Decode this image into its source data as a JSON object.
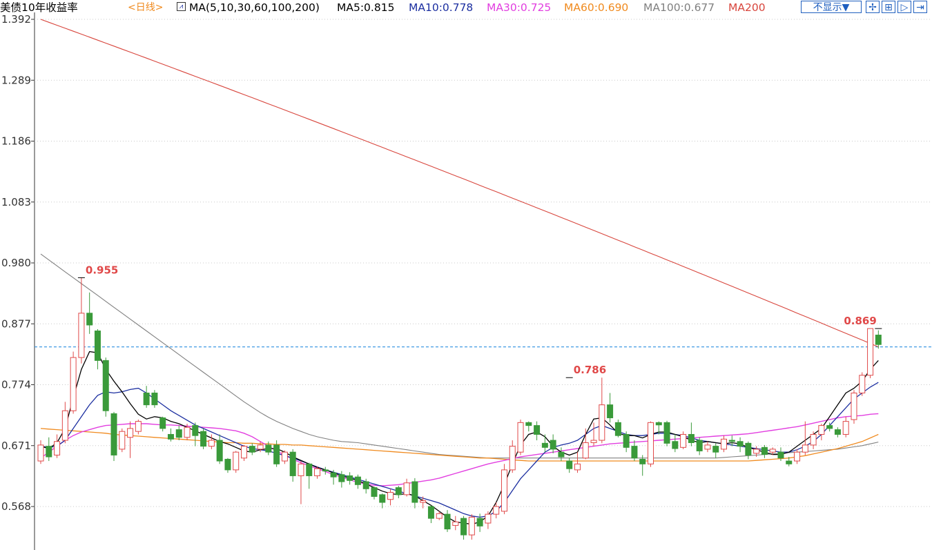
{
  "header": {
    "title": "美债10年收益率",
    "period": "<日线>",
    "ma_group": "MA(5,10,30,60,100,200)",
    "ma5": "MA5:0.815",
    "ma10": "MA10:0.778",
    "ma30": "MA30:0.725",
    "ma60": "MA60:0.690",
    "ma100": "MA100:0.677",
    "ma200": "MA200",
    "hide_button": "不显示▼"
  },
  "colors": {
    "up": "#e04848",
    "down": "#3a9a3a",
    "ma5": "#000000",
    "ma10": "#1c2fa0",
    "ma30": "#e23ee0",
    "ma60": "#f08a1e",
    "ma100": "#808080",
    "ma200": "#d8453c",
    "period": "#f08a1e",
    "axis": "#333333",
    "grid": "#c8c8c8",
    "ref_line": "#2a8fe0"
  },
  "toolbar_icons": [
    "crosshair-icon",
    "zoom-in-icon",
    "play-icon",
    "export-icon"
  ],
  "chart_data": {
    "type": "candlestick",
    "title": "美债10年收益率",
    "y_ticks": [
      "1.392",
      "1.289",
      "1.186",
      "1.083",
      "0.980",
      "0.877",
      "0.774",
      "0.671",
      "0.568"
    ],
    "ylim": [
      0.52,
      1.4
    ],
    "ref_level": 0.838,
    "annotations": [
      {
        "text": "0.955",
        "index": 5,
        "value": 0.955
      },
      {
        "text": "0.786",
        "index": 65,
        "value": 0.786
      },
      {
        "text": "0.869",
        "index": 103,
        "value": 0.869
      }
    ],
    "candles": [
      [
        0.645,
        0.672,
        0.64,
        0.68
      ],
      [
        0.67,
        0.652,
        0.645,
        0.685
      ],
      [
        0.655,
        0.678,
        0.65,
        0.69
      ],
      [
        0.68,
        0.73,
        0.675,
        0.745
      ],
      [
        0.73,
        0.82,
        0.725,
        0.83
      ],
      [
        0.82,
        0.895,
        0.81,
        0.955
      ],
      [
        0.895,
        0.875,
        0.86,
        0.93
      ],
      [
        0.865,
        0.815,
        0.8,
        0.868
      ],
      [
        0.815,
        0.73,
        0.72,
        0.82
      ],
      [
        0.725,
        0.655,
        0.645,
        0.728
      ],
      [
        0.665,
        0.695,
        0.66,
        0.7
      ],
      [
        0.685,
        0.7,
        0.65,
        0.712
      ],
      [
        0.695,
        0.712,
        0.69,
        0.715
      ],
      [
        0.76,
        0.74,
        0.735,
        0.772
      ],
      [
        0.76,
        0.74,
        0.735,
        0.765
      ],
      [
        0.718,
        0.7,
        0.695,
        0.72
      ],
      [
        0.69,
        0.682,
        0.678,
        0.7
      ],
      [
        0.698,
        0.685,
        0.68,
        0.705
      ],
      [
        0.685,
        0.702,
        0.68,
        0.708
      ],
      [
        0.705,
        0.688,
        0.67,
        0.71
      ],
      [
        0.695,
        0.67,
        0.665,
        0.7
      ],
      [
        0.67,
        0.68,
        0.665,
        0.69
      ],
      [
        0.68,
        0.645,
        0.64,
        0.69
      ],
      [
        0.648,
        0.63,
        0.625,
        0.65
      ],
      [
        0.63,
        0.66,
        0.625,
        0.662
      ],
      [
        0.65,
        0.67,
        0.645,
        0.672
      ],
      [
        0.67,
        0.66,
        0.655,
        0.675
      ],
      [
        0.665,
        0.672,
        0.66,
        0.678
      ],
      [
        0.672,
        0.66,
        0.655,
        0.678
      ],
      [
        0.672,
        0.64,
        0.635,
        0.68
      ],
      [
        0.645,
        0.66,
        0.64,
        0.663
      ],
      [
        0.66,
        0.62,
        0.61,
        0.665
      ],
      [
        0.62,
        0.64,
        0.572,
        0.645
      ],
      [
        0.64,
        0.62,
        0.598,
        0.642
      ],
      [
        0.62,
        0.632,
        0.615,
        0.636
      ],
      [
        0.63,
        0.628,
        0.622,
        0.635
      ],
      [
        0.625,
        0.618,
        0.605,
        0.63
      ],
      [
        0.622,
        0.61,
        0.6,
        0.628
      ],
      [
        0.62,
        0.612,
        0.605,
        0.626
      ],
      [
        0.618,
        0.605,
        0.598,
        0.622
      ],
      [
        0.61,
        0.598,
        0.59,
        0.615
      ],
      [
        0.6,
        0.585,
        0.58,
        0.602
      ],
      [
        0.588,
        0.575,
        0.565,
        0.59
      ],
      [
        0.58,
        0.592,
        0.57,
        0.598
      ],
      [
        0.6,
        0.588,
        0.582,
        0.603
      ],
      [
        0.588,
        0.608,
        0.585,
        0.615
      ],
      [
        0.61,
        0.575,
        0.565,
        0.616
      ],
      [
        0.575,
        0.578,
        0.565,
        0.585
      ],
      [
        0.568,
        0.548,
        0.54,
        0.57
      ],
      [
        0.548,
        0.556,
        0.545,
        0.56
      ],
      [
        0.555,
        0.53,
        0.525,
        0.562
      ],
      [
        0.536,
        0.542,
        0.528,
        0.552
      ],
      [
        0.548,
        0.52,
        0.512,
        0.552
      ],
      [
        0.52,
        0.55,
        0.512,
        0.555
      ],
      [
        0.548,
        0.535,
        0.525,
        0.556
      ],
      [
        0.54,
        0.555,
        0.53,
        0.56
      ],
      [
        0.555,
        0.568,
        0.548,
        0.575
      ],
      [
        0.56,
        0.63,
        0.555,
        0.64
      ],
      [
        0.63,
        0.67,
        0.625,
        0.68
      ],
      [
        0.66,
        0.71,
        0.655,
        0.715
      ],
      [
        0.71,
        0.705,
        0.695,
        0.712
      ],
      [
        0.705,
        0.69,
        0.68,
        0.712
      ],
      [
        0.675,
        0.668,
        0.66,
        0.69
      ],
      [
        0.68,
        0.665,
        0.658,
        0.69
      ],
      [
        0.66,
        0.652,
        0.645,
        0.668
      ],
      [
        0.645,
        0.632,
        0.625,
        0.65
      ],
      [
        0.63,
        0.64,
        0.625,
        0.66
      ],
      [
        0.65,
        0.676,
        0.648,
        0.7
      ],
      [
        0.676,
        0.68,
        0.67,
        0.71
      ],
      [
        0.68,
        0.74,
        0.675,
        0.786
      ],
      [
        0.74,
        0.718,
        0.71,
        0.76
      ],
      [
        0.71,
        0.688,
        0.685,
        0.715
      ],
      [
        0.69,
        0.668,
        0.66,
        0.695
      ],
      [
        0.67,
        0.65,
        0.645,
        0.68
      ],
      [
        0.648,
        0.64,
        0.62,
        0.655
      ],
      [
        0.64,
        0.71,
        0.635,
        0.712
      ],
      [
        0.71,
        0.706,
        0.69,
        0.712
      ],
      [
        0.71,
        0.675,
        0.67,
        0.713
      ],
      [
        0.678,
        0.666,
        0.66,
        0.69
      ],
      [
        0.668,
        0.69,
        0.665,
        0.695
      ],
      [
        0.69,
        0.676,
        0.67,
        0.71
      ],
      [
        0.68,
        0.662,
        0.655,
        0.685
      ],
      [
        0.665,
        0.672,
        0.66,
        0.678
      ],
      [
        0.67,
        0.66,
        0.65,
        0.675
      ],
      [
        0.665,
        0.682,
        0.66,
        0.688
      ],
      [
        0.68,
        0.678,
        0.67,
        0.688
      ],
      [
        0.678,
        0.67,
        0.66,
        0.685
      ],
      [
        0.675,
        0.655,
        0.648,
        0.678
      ],
      [
        0.658,
        0.665,
        0.652,
        0.67
      ],
      [
        0.668,
        0.656,
        0.65,
        0.672
      ],
      [
        0.66,
        0.665,
        0.655,
        0.668
      ],
      [
        0.66,
        0.65,
        0.645,
        0.668
      ],
      [
        0.645,
        0.64,
        0.636,
        0.652
      ],
      [
        0.645,
        0.66,
        0.64,
        0.665
      ],
      [
        0.66,
        0.672,
        0.655,
        0.712
      ],
      [
        0.672,
        0.69,
        0.665,
        0.695
      ],
      [
        0.69,
        0.705,
        0.68,
        0.708
      ],
      [
        0.705,
        0.7,
        0.695,
        0.71
      ],
      [
        0.698,
        0.69,
        0.685,
        0.702
      ],
      [
        0.69,
        0.712,
        0.685,
        0.72
      ],
      [
        0.715,
        0.76,
        0.708,
        0.765
      ],
      [
        0.76,
        0.79,
        0.755,
        0.795
      ],
      [
        0.79,
        0.869,
        0.785,
        0.869
      ],
      [
        0.858,
        0.842,
        0.835,
        0.866
      ]
    ],
    "ma5": [
      0.67,
      0.666,
      0.676,
      0.7,
      0.752,
      0.8,
      0.83,
      0.828,
      0.8,
      0.78,
      0.762,
      0.742,
      0.724,
      0.716,
      0.72,
      0.718,
      0.712,
      0.708,
      0.702,
      0.696,
      0.69,
      0.684,
      0.678,
      0.674,
      0.668,
      0.662,
      0.66,
      0.664,
      0.666,
      0.666,
      0.66,
      0.652,
      0.646,
      0.64,
      0.634,
      0.63,
      0.625,
      0.62,
      0.616,
      0.612,
      0.606,
      0.6,
      0.594,
      0.59,
      0.588,
      0.59,
      0.586,
      0.578,
      0.57,
      0.56,
      0.55,
      0.542,
      0.54,
      0.538,
      0.542,
      0.552,
      0.575,
      0.605,
      0.64,
      0.672,
      0.69,
      0.694,
      0.686,
      0.67,
      0.66,
      0.655,
      0.66,
      0.69,
      0.716,
      0.718,
      0.706,
      0.692,
      0.688,
      0.688,
      0.684,
      0.69,
      0.694,
      0.694,
      0.69,
      0.686,
      0.68,
      0.676,
      0.678,
      0.676,
      0.674,
      0.676,
      0.674,
      0.668,
      0.664,
      0.66,
      0.656,
      0.656,
      0.66,
      0.67,
      0.68,
      0.69,
      0.7,
      0.72,
      0.74,
      0.76,
      0.768,
      0.78,
      0.8,
      0.815
    ],
    "ma10": [
      0.67,
      0.668,
      0.67,
      0.68,
      0.7,
      0.72,
      0.74,
      0.756,
      0.762,
      0.76,
      0.762,
      0.766,
      0.768,
      0.76,
      0.75,
      0.74,
      0.73,
      0.722,
      0.714,
      0.706,
      0.7,
      0.694,
      0.688,
      0.682,
      0.676,
      0.67,
      0.666,
      0.664,
      0.662,
      0.658,
      0.654,
      0.65,
      0.645,
      0.64,
      0.635,
      0.63,
      0.626,
      0.622,
      0.618,
      0.614,
      0.61,
      0.606,
      0.602,
      0.598,
      0.594,
      0.59,
      0.586,
      0.582,
      0.578,
      0.574,
      0.568,
      0.562,
      0.556,
      0.552,
      0.55,
      0.552,
      0.56,
      0.575,
      0.595,
      0.615,
      0.63,
      0.645,
      0.66,
      0.668,
      0.672,
      0.675,
      0.68,
      0.69,
      0.7,
      0.705,
      0.7,
      0.695,
      0.69,
      0.688,
      0.688,
      0.69,
      0.692,
      0.692,
      0.69,
      0.688,
      0.684,
      0.68,
      0.678,
      0.676,
      0.674,
      0.672,
      0.67,
      0.668,
      0.666,
      0.664,
      0.662,
      0.66,
      0.66,
      0.664,
      0.67,
      0.678,
      0.69,
      0.705,
      0.72,
      0.735,
      0.75,
      0.76,
      0.77,
      0.778
    ],
    "ma30": [
      0.65,
      0.66,
      0.67,
      0.68,
      0.688,
      0.694,
      0.698,
      0.702,
      0.705,
      0.706,
      0.707,
      0.708,
      0.708,
      0.708,
      0.707,
      0.706,
      0.706,
      0.705,
      0.704,
      0.703,
      0.702,
      0.701,
      0.7,
      0.698,
      0.696,
      0.692,
      0.686,
      0.678,
      0.67,
      0.662,
      0.655,
      0.648,
      0.642,
      0.637,
      0.632,
      0.627,
      0.622,
      0.618,
      0.613,
      0.609,
      0.606,
      0.604,
      0.603,
      0.604,
      0.605,
      0.607,
      0.609,
      0.611,
      0.613,
      0.616,
      0.62,
      0.624,
      0.628,
      0.632,
      0.636,
      0.64,
      0.643,
      0.646,
      0.649,
      0.652,
      0.654,
      0.656,
      0.658,
      0.66,
      0.662,
      0.664,
      0.666,
      0.668,
      0.67,
      0.672,
      0.674,
      0.675,
      0.676,
      0.677,
      0.678,
      0.679,
      0.68,
      0.681,
      0.682,
      0.683,
      0.684,
      0.685,
      0.686,
      0.687,
      0.688,
      0.689,
      0.69,
      0.691,
      0.693,
      0.695,
      0.697,
      0.699,
      0.701,
      0.703,
      0.706,
      0.709,
      0.712,
      0.715,
      0.718,
      0.72,
      0.721,
      0.722,
      0.724,
      0.725
    ],
    "ma60": [
      0.7,
      0.699,
      0.698,
      0.697,
      0.696,
      0.695,
      0.694,
      0.693,
      0.692,
      0.69,
      0.689,
      0.688,
      0.687,
      0.686,
      0.685,
      0.684,
      0.683,
      0.682,
      0.681,
      0.68,
      0.679,
      0.678,
      0.677,
      0.676,
      0.676,
      0.675,
      0.675,
      0.674,
      0.674,
      0.673,
      0.673,
      0.672,
      0.672,
      0.671,
      0.67,
      0.669,
      0.668,
      0.667,
      0.666,
      0.665,
      0.664,
      0.663,
      0.662,
      0.661,
      0.66,
      0.659,
      0.658,
      0.657,
      0.656,
      0.655,
      0.654,
      0.653,
      0.652,
      0.651,
      0.65,
      0.65,
      0.649,
      0.648,
      0.647,
      0.646,
      0.645,
      0.645,
      0.645,
      0.645,
      0.645,
      0.645,
      0.645,
      0.645,
      0.645,
      0.645,
      0.645,
      0.645,
      0.645,
      0.645,
      0.645,
      0.645,
      0.645,
      0.645,
      0.645,
      0.645,
      0.645,
      0.645,
      0.645,
      0.645,
      0.645,
      0.645,
      0.645,
      0.645,
      0.646,
      0.647,
      0.648,
      0.649,
      0.65,
      0.652,
      0.654,
      0.657,
      0.66,
      0.663,
      0.666,
      0.67,
      0.674,
      0.678,
      0.684,
      0.69
    ],
    "ma100": [
      0.995,
      0.985,
      0.975,
      0.965,
      0.955,
      0.945,
      0.935,
      0.925,
      0.915,
      0.905,
      0.895,
      0.885,
      0.875,
      0.865,
      0.855,
      0.845,
      0.835,
      0.825,
      0.815,
      0.805,
      0.795,
      0.785,
      0.775,
      0.765,
      0.755,
      0.745,
      0.736,
      0.727,
      0.719,
      0.712,
      0.706,
      0.7,
      0.695,
      0.69,
      0.686,
      0.683,
      0.68,
      0.678,
      0.677,
      0.676,
      0.674,
      0.672,
      0.67,
      0.668,
      0.666,
      0.664,
      0.662,
      0.66,
      0.658,
      0.656,
      0.655,
      0.654,
      0.653,
      0.652,
      0.651,
      0.65,
      0.65,
      0.65,
      0.65,
      0.65,
      0.65,
      0.65,
      0.65,
      0.65,
      0.65,
      0.65,
      0.65,
      0.65,
      0.65,
      0.65,
      0.65,
      0.65,
      0.65,
      0.65,
      0.65,
      0.65,
      0.65,
      0.65,
      0.65,
      0.65,
      0.65,
      0.65,
      0.65,
      0.65,
      0.651,
      0.652,
      0.653,
      0.654,
      0.655,
      0.656,
      0.657,
      0.658,
      0.659,
      0.66,
      0.661,
      0.662,
      0.663,
      0.664,
      0.665,
      0.667,
      0.669,
      0.671,
      0.674,
      0.677
    ],
    "ma200_start": 1.392,
    "ma200_end": 0.838
  }
}
